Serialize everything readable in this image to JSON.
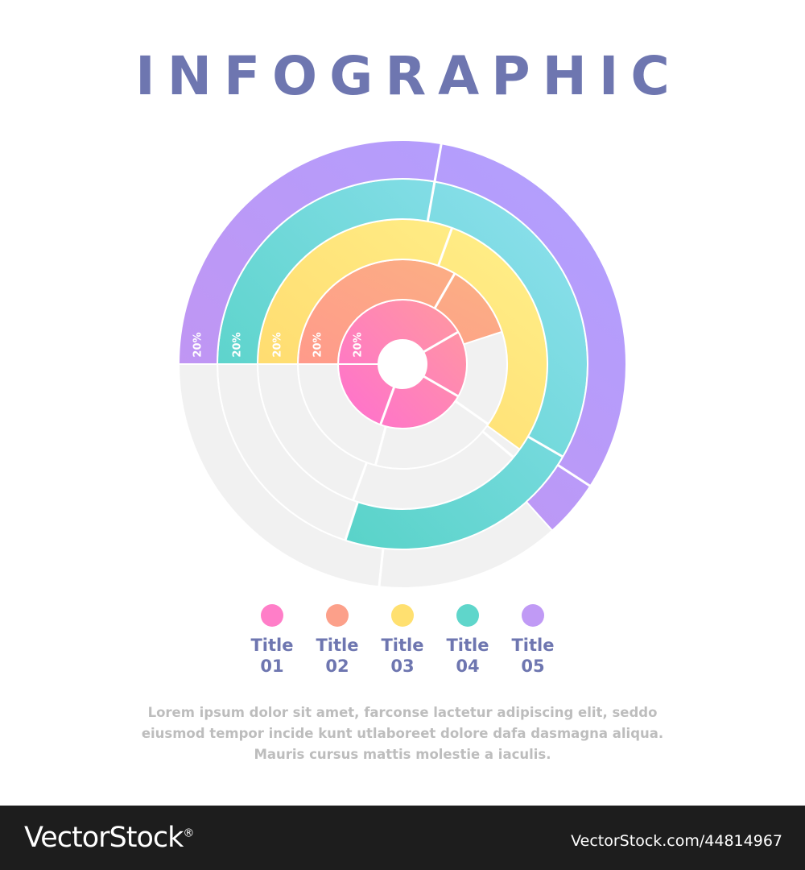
{
  "header": {
    "title": "INFOGRAPHIC",
    "title_color": "#6e76b0"
  },
  "chart_data": {
    "type": "radial-bar",
    "series": [
      {
        "name": "Title 01",
        "value": 20,
        "value_label": "20%",
        "sweep_degrees": 360,
        "color_start": "#ff6fd0",
        "color_end": "#ff9a9e"
      },
      {
        "name": "Title 02",
        "value": 20,
        "value_label": "20%",
        "sweep_degrees": 162,
        "color_start": "#ff9a8b",
        "color_end": "#fbb183"
      },
      {
        "name": "Title 03",
        "value": 20,
        "value_label": "20%",
        "sweep_degrees": 216,
        "color_start": "#ffd86b",
        "color_end": "#fff08a"
      },
      {
        "name": "Title 04",
        "value": 20,
        "value_label": "20%",
        "sweep_degrees": 288,
        "color_start": "#4dd0c0",
        "color_end": "#90e0f0"
      },
      {
        "name": "Title 05",
        "value": 20,
        "value_label": "20%",
        "sweep_degrees": 228,
        "color_start": "#c493f0",
        "color_end": "#b0a0ff"
      }
    ],
    "track_color": "#f1f1f1"
  },
  "legend": {
    "items": [
      {
        "label": "Title\n01",
        "color": "#ff7ec8"
      },
      {
        "label": "Title\n02",
        "color": "#fca08a"
      },
      {
        "label": "Title\n03",
        "color": "#ffe070"
      },
      {
        "label": "Title\n04",
        "color": "#5fd6cb"
      },
      {
        "label": "Title\n05",
        "color": "#c09af5"
      }
    ]
  },
  "description": "Lorem ipsum dolor sit amet, farconse lactetur adipiscing elit, seddo eiusmod tempor incide kunt utlaboreet dolore dafa dasmagna aliqua. Mauris cursus mattis molestie a iaculis.",
  "footer": {
    "brand": "VectorStock",
    "brand_mark": "®",
    "image_id": "VectorStock.com/44814967"
  }
}
